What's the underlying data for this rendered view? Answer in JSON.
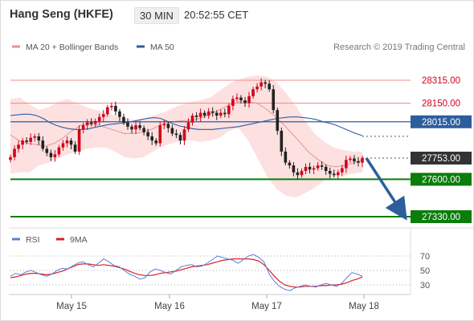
{
  "header": {
    "instrument": "Hang Seng (HKFE)",
    "timeframe": "30 MIN",
    "clock": "20:52:55 CET"
  },
  "legend_main": [
    {
      "label": "MA 20 + Bollinger Bands",
      "color": "#f08c8c"
    },
    {
      "label": "MA 50",
      "color": "#2c5e9e"
    }
  ],
  "legend_rsi": [
    {
      "label": "RSI",
      "color": "#5b7fd6"
    },
    {
      "label": "9MA",
      "color": "#e02020"
    }
  ],
  "watermark": "Research © 2019 Trading Central",
  "colors": {
    "resistance": "#f08c8c",
    "pivot": "#2c5e9e",
    "support": "#0a7d0a",
    "last_price": "#333333",
    "bullish": "#d0021b",
    "bearish": "#222222",
    "band_fill": "#fde0e0",
    "arrow": "#2c5e9e"
  },
  "chart_data": [
    {
      "type": "candlestick",
      "x_labels": [
        "May 15",
        "May 16",
        "May 17",
        "May 18"
      ],
      "ylim": [
        27250,
        28400
      ],
      "levels": [
        {
          "value": 28315,
          "label": "28315.00",
          "kind": "resistance"
        },
        {
          "value": 28150,
          "label": "28150.00",
          "kind": "resistance"
        },
        {
          "value": 28015,
          "label": "28015.00",
          "kind": "pivot"
        },
        {
          "value": 27753,
          "label": "27753.00",
          "kind": "last"
        },
        {
          "value": 27600,
          "label": "27600.00",
          "kind": "support"
        },
        {
          "value": 27330,
          "label": "27330.00",
          "kind": "support"
        }
      ],
      "closes": [
        27760,
        27820,
        27850,
        27880,
        27870,
        27900,
        27910,
        27880,
        27820,
        27790,
        27760,
        27780,
        27830,
        27860,
        27880,
        27850,
        27800,
        27960,
        27990,
        28010,
        28000,
        28020,
        28050,
        28070,
        28120,
        28130,
        28090,
        28050,
        28010,
        27980,
        27960,
        27990,
        27970,
        27940,
        27910,
        27880,
        27860,
        27990,
        28000,
        27970,
        27930,
        27920,
        27880,
        27960,
        28010,
        28060,
        28050,
        28080,
        28060,
        28090,
        28080,
        28060,
        28080,
        28070,
        28130,
        28180,
        28190,
        28170,
        28150,
        28200,
        28250,
        28270,
        28300,
        28290,
        28250,
        28100,
        27950,
        27800,
        27720,
        27700,
        27650,
        27630,
        27660,
        27690,
        27670,
        27680,
        27700,
        27690,
        27660,
        27640,
        27630,
        27650,
        27680,
        27740,
        27750,
        27730,
        27720,
        27753
      ],
      "ma50": [
        28060,
        28065,
        28070,
        28070,
        28060,
        28040,
        28010,
        27990,
        27975,
        27965,
        27960,
        27960,
        27965,
        27975,
        27985,
        27995,
        28000,
        28005,
        28010,
        28020,
        28030,
        28040,
        28045,
        28040,
        28020,
        28000,
        27985,
        27975,
        27965,
        27960,
        27960,
        27960,
        27965,
        27970,
        27975,
        27980,
        27990,
        28000,
        28010,
        28020,
        28030,
        28040,
        28045,
        28050,
        28050,
        28045,
        28040,
        28030,
        28015,
        28005,
        27990,
        27970,
        27950,
        27930,
        27915
      ],
      "ma20": [
        27920,
        27880,
        27860,
        27850,
        27840,
        27860,
        27900,
        27950,
        27990,
        28000,
        27990,
        27970,
        27950,
        27930,
        27930,
        27940,
        27960,
        27990,
        28010,
        28020,
        28025,
        28030,
        28050,
        28080,
        28110,
        28140,
        28160,
        28160,
        28150,
        28110,
        28060,
        28000,
        27930,
        27860,
        27790,
        27740,
        27700,
        27690,
        27700,
        27720,
        27740
      ],
      "bb_upper": [
        28180,
        28190,
        28140,
        28100,
        28120,
        28160,
        28180,
        28150,
        28120,
        28100,
        28080,
        28060,
        28040,
        28030,
        28040,
        28060,
        28080,
        28110,
        28140,
        28160,
        28170,
        28190,
        28240,
        28290,
        28320,
        28340,
        28350,
        28340,
        28300,
        28220,
        28130,
        28020,
        27930,
        27870,
        27830,
        27810,
        27800,
        27800
      ],
      "bb_lower": [
        27640,
        27650,
        27650,
        27700,
        27720,
        27750,
        27780,
        27800,
        27820,
        27830,
        27830,
        27800,
        27760,
        27750,
        27760,
        27800,
        27840,
        27860,
        27880,
        27880,
        27870,
        27880,
        27900,
        27950,
        27970,
        27880,
        27750,
        27620,
        27530,
        27480,
        27470,
        27500,
        27540,
        27590,
        27620,
        27630,
        27640,
        27650
      ],
      "forecast": {
        "from": 27753,
        "to": 27330
      }
    },
    {
      "type": "line",
      "name": "RSI",
      "ylim": [
        15,
        85
      ],
      "ticks": [
        70,
        50,
        30
      ],
      "overbought": 70,
      "oversold": 30,
      "series": [
        {
          "name": "RSI",
          "values": [
            42,
            46,
            44,
            48,
            50,
            47,
            44,
            42,
            45,
            50,
            53,
            52,
            56,
            60,
            62,
            58,
            55,
            60,
            66,
            62,
            57,
            55,
            50,
            45,
            42,
            38,
            40,
            48,
            52,
            50,
            47,
            45,
            50,
            55,
            57,
            58,
            55,
            56,
            60,
            65,
            70,
            68,
            66,
            64,
            60,
            65,
            70,
            72,
            68,
            62,
            45,
            35,
            28,
            24,
            22,
            26,
            28,
            30,
            28,
            27,
            30,
            32,
            30,
            28,
            32,
            40,
            47,
            45,
            42
          ]
        },
        {
          "name": "9MA",
          "values": [
            40,
            41,
            43,
            45,
            46,
            46,
            45,
            44,
            45,
            47,
            49,
            52,
            55,
            58,
            59,
            59,
            58,
            57,
            58,
            57,
            56,
            54,
            52,
            49,
            46,
            44,
            43,
            43,
            44,
            46,
            47,
            48,
            49,
            51,
            53,
            55,
            56,
            57,
            58,
            60,
            62,
            64,
            65,
            66,
            66,
            66,
            66,
            65,
            63,
            58,
            50,
            42,
            35,
            30,
            28,
            27,
            27,
            28,
            28,
            28,
            29,
            29,
            30,
            30,
            31,
            33,
            36,
            38,
            41
          ]
        }
      ]
    }
  ]
}
